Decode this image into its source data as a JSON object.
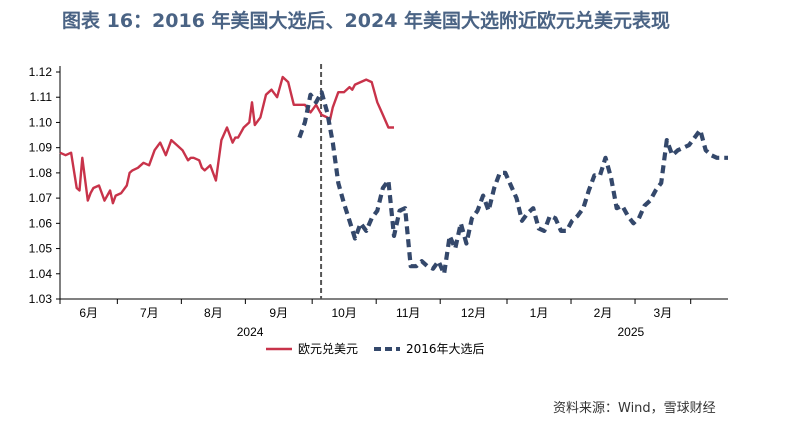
{
  "title": "图表 16：2016 年美国大选后、2024 年美国大选附近欧元兑美元表现",
  "source": "资料来源：Wind，雪球财经",
  "colors": {
    "series_2024": "#c8334a",
    "series_2016": "#34486b",
    "marker": "#555555",
    "title": "#4a6384"
  },
  "chart_data": {
    "type": "line",
    "ylim": [
      1.03,
      1.12
    ],
    "yticks": [
      "1.03",
      "1.04",
      "1.05",
      "1.06",
      "1.07",
      "1.08",
      "1.09",
      "1.10",
      "1.11",
      "1.12"
    ],
    "xlim": [
      0,
      120
    ],
    "month_boundaries": [
      0,
      10.3,
      21.8,
      33.3,
      45.3,
      56.8,
      68.3,
      80.3,
      91.8,
      103.3,
      113.3,
      122.3
    ],
    "month_labels": [
      "6月",
      "7月",
      "8月",
      "9月",
      "10月",
      "11月",
      "12月",
      "1月",
      "2月",
      "3月"
    ],
    "years": [
      {
        "label": "2024",
        "from": 0,
        "to": 68.3
      },
      {
        "label": "2025",
        "from": 91.8,
        "to": 113.3
      }
    ],
    "election_marker_x": 46.9,
    "series": [
      {
        "name": "欧元兑美元",
        "style": "solid",
        "x": [
          0,
          1,
          2,
          2.5,
          3,
          3.5,
          4,
          5,
          5.5,
          6,
          7,
          8,
          9,
          9.5,
          10,
          11,
          12,
          12.5,
          13,
          14,
          15,
          16,
          17,
          18,
          19,
          20,
          21,
          22,
          23,
          23.5,
          24,
          25,
          25.5,
          26,
          27,
          28,
          29,
          30,
          31,
          31.5,
          32,
          33,
          34,
          34.5,
          35,
          36,
          37,
          38,
          39,
          40,
          40.5,
          41,
          42,
          43,
          44,
          45,
          46,
          47,
          48,
          48.5,
          49,
          50,
          51,
          52,
          52.5,
          53,
          54,
          55,
          56,
          57,
          58,
          59,
          60
        ],
        "y": [
          1.088,
          1.087,
          1.088,
          1.081,
          1.074,
          1.073,
          1.086,
          1.069,
          1.072,
          1.074,
          1.075,
          1.069,
          1.073,
          1.068,
          1.071,
          1.072,
          1.075,
          1.08,
          1.081,
          1.082,
          1.084,
          1.083,
          1.089,
          1.092,
          1.087,
          1.093,
          1.091,
          1.089,
          1.085,
          1.086,
          1.086,
          1.085,
          1.082,
          1.081,
          1.083,
          1.077,
          1.093,
          1.098,
          1.092,
          1.094,
          1.094,
          1.098,
          1.1,
          1.108,
          1.099,
          1.102,
          1.111,
          1.113,
          1.11,
          1.118,
          1.117,
          1.116,
          1.107,
          1.107,
          1.107,
          1.104,
          1.107,
          1.103,
          1.102,
          1.101,
          1.106,
          1.112,
          1.112,
          1.114,
          1.113,
          1.115,
          1.116,
          1.117,
          1.116,
          1.108,
          1.103,
          1.098,
          1.098
        ]
      },
      {
        "name": "2016年大选后",
        "style": "dashed",
        "x": [
          43,
          44,
          45,
          46,
          47,
          48,
          49,
          50,
          51,
          52,
          53,
          54,
          55,
          56,
          57,
          58,
          59,
          60,
          61,
          62,
          63,
          64,
          65,
          66,
          67,
          68,
          69,
          70,
          71,
          72,
          73,
          74,
          75,
          76,
          77,
          78,
          79,
          80,
          81,
          82,
          83,
          84,
          85,
          86,
          87,
          88,
          89,
          90,
          91,
          92,
          93,
          94,
          95,
          96,
          97,
          98,
          99,
          100,
          101,
          102,
          103,
          104,
          105,
          106,
          107,
          108,
          109,
          110,
          111,
          112,
          113,
          114,
          115,
          116,
          117,
          118,
          119,
          120
        ],
        "y": [
          1.094,
          1.1,
          1.111,
          1.108,
          1.112,
          1.104,
          1.092,
          1.076,
          1.068,
          1.061,
          1.054,
          1.06,
          1.057,
          1.062,
          1.065,
          1.074,
          1.077,
          1.055,
          1.065,
          1.066,
          1.043,
          1.043,
          1.045,
          1.043,
          1.042,
          1.045,
          1.04,
          1.055,
          1.05,
          1.06,
          1.052,
          1.062,
          1.065,
          1.071,
          1.065,
          1.074,
          1.08,
          1.08,
          1.075,
          1.07,
          1.061,
          1.064,
          1.066,
          1.058,
          1.057,
          1.063,
          1.062,
          1.057,
          1.057,
          1.061,
          1.063,
          1.066,
          1.073,
          1.079,
          1.079,
          1.086,
          1.078,
          1.066,
          1.067,
          1.063,
          1.06,
          1.062,
          1.067,
          1.069,
          1.073,
          1.076,
          1.093,
          1.087,
          1.089,
          1.09,
          1.091,
          1.094,
          1.097,
          1.089,
          1.087,
          1.086,
          1.086,
          1.086
        ]
      }
    ],
    "legend": {
      "placement": "bottom-center"
    }
  }
}
